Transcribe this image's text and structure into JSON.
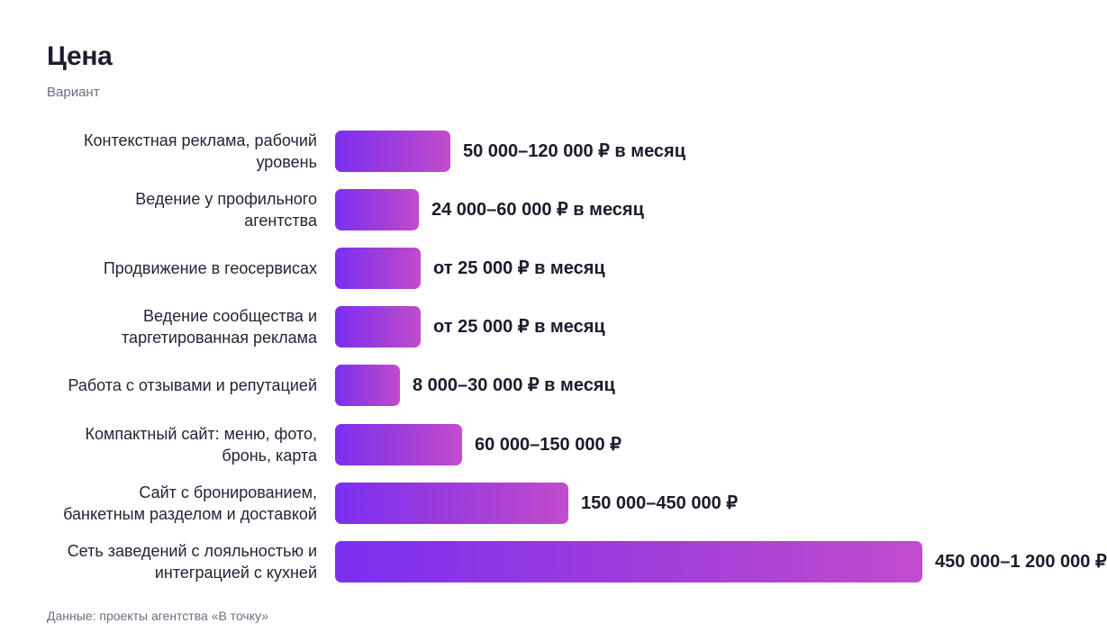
{
  "chart_data": {
    "type": "bar",
    "orientation": "horizontal",
    "title": "Цена",
    "subtitle": "Вариант",
    "categories": [
      "Контекстная реклама, рабочий уровень",
      "Ведение у профильного агентства",
      "Продвижение в геосервисах",
      "Ведение сообщества и таргетированная реклама",
      "Работа с отзывами и репутацией",
      "Компактный сайт: меню, фото, бронь, карта",
      "Сайт с бронированием, банкетным разделом и доставкой",
      "Сеть заведений с лояльностью и интеграцией с кухней"
    ],
    "values": [
      50000,
      24000,
      25000,
      25000,
      8000,
      60000,
      150000,
      450000
    ],
    "data_labels": [
      "50 000–120 000 ₽ в месяц",
      "24 000–60 000 ₽ в месяц",
      "от 25 000 ₽ в месяц",
      "от 25 000 ₽ в месяц",
      "8 000–30 000 ₽ в месяц",
      "60 000–150 000 ₽",
      "150 000–450 000 ₽",
      "450 000–1 200 000 ₽"
    ],
    "xlim": [
      0,
      450000
    ],
    "grid": false,
    "colors": {
      "bar_start": "#7b2ff0",
      "bar_end": "#c24ccc"
    }
  },
  "source": "Данные: проекты агентства «В точку»"
}
